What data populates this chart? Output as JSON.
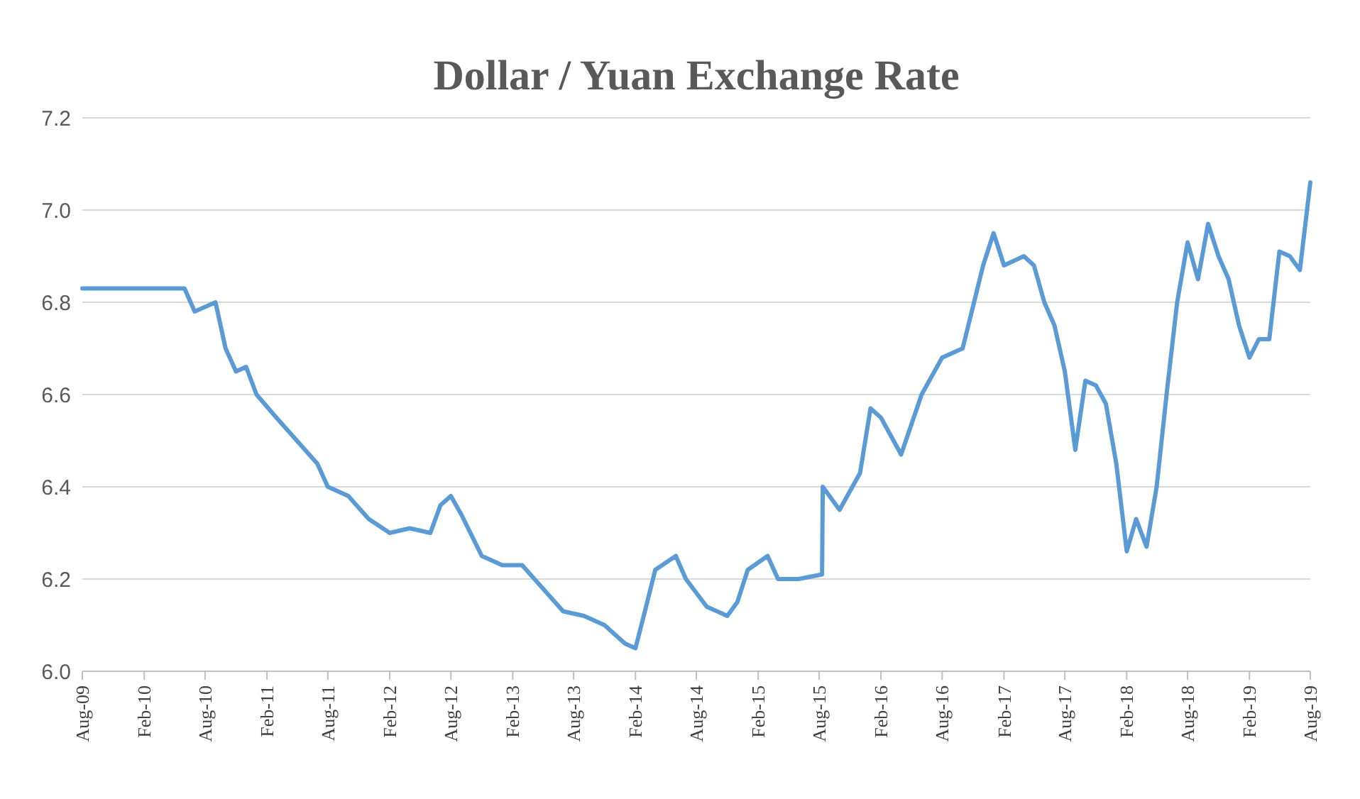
{
  "chart_data": {
    "type": "line",
    "title": "Dollar / Yuan Exchange Rate",
    "x": [
      "2009-08",
      "2010-01",
      "2010-06",
      "2010-07",
      "2010-09",
      "2010-10",
      "2010-11",
      "2010-12",
      "2011-01",
      "2011-03",
      "2011-05",
      "2011-07",
      "2011-08",
      "2011-10",
      "2011-12",
      "2012-02",
      "2012-04",
      "2012-06",
      "2012-07",
      "2012-08",
      "2012-09",
      "2012-11",
      "2013-01",
      "2013-03",
      "2013-05",
      "2013-07",
      "2013-09",
      "2013-11",
      "2014-01",
      "2014-02",
      "2014-03",
      "2014-04",
      "2014-06",
      "2014-07",
      "2014-09",
      "2014-11",
      "2014-12",
      "2015-01",
      "2015-03",
      "2015-04",
      "2015-06",
      "2015-08-10",
      "2015-08-12",
      "2015-10",
      "2015-12",
      "2016-01",
      "2016-02",
      "2016-04",
      "2016-06",
      "2016-08",
      "2016-10",
      "2016-12",
      "2017-01",
      "2017-02",
      "2017-04",
      "2017-05",
      "2017-06",
      "2017-07",
      "2017-08",
      "2017-09",
      "2017-10",
      "2017-11",
      "2017-12",
      "2018-01",
      "2018-02",
      "2018-03",
      "2018-04",
      "2018-05",
      "2018-06",
      "2018-07",
      "2018-08",
      "2018-09",
      "2018-10",
      "2018-11",
      "2018-12",
      "2019-01",
      "2019-02",
      "2019-03",
      "2019-04",
      "2019-05",
      "2019-06",
      "2019-07",
      "2019-08"
    ],
    "series": [
      {
        "color": "#5b9bd5",
        "values": [
          6.83,
          6.83,
          6.83,
          6.78,
          6.8,
          6.7,
          6.65,
          6.66,
          6.6,
          6.55,
          6.5,
          6.45,
          6.4,
          6.38,
          6.33,
          6.3,
          6.31,
          6.3,
          6.36,
          6.38,
          6.34,
          6.25,
          6.23,
          6.23,
          6.18,
          6.13,
          6.12,
          6.1,
          6.06,
          6.05,
          6.13,
          6.22,
          6.25,
          6.2,
          6.14,
          6.12,
          6.15,
          6.22,
          6.25,
          6.2,
          6.2,
          6.21,
          6.4,
          6.35,
          6.43,
          6.57,
          6.55,
          6.47,
          6.6,
          6.68,
          6.7,
          6.88,
          6.95,
          6.88,
          6.9,
          6.88,
          6.8,
          6.75,
          6.65,
          6.48,
          6.63,
          6.62,
          6.58,
          6.45,
          6.26,
          6.33,
          6.27,
          6.4,
          6.61,
          6.8,
          6.93,
          6.85,
          6.97,
          6.9,
          6.85,
          6.75,
          6.68,
          6.72,
          6.72,
          6.91,
          6.9,
          6.87,
          7.06
        ]
      }
    ],
    "xlim": [
      "2009-08",
      "2019-08"
    ],
    "xticks": [
      {
        "value": "2009-08",
        "label": "Aug-09"
      },
      {
        "value": "2010-02",
        "label": "Feb-10"
      },
      {
        "value": "2010-08",
        "label": "Aug-10"
      },
      {
        "value": "2011-02",
        "label": "Feb-11"
      },
      {
        "value": "2011-08",
        "label": "Aug-11"
      },
      {
        "value": "2012-02",
        "label": "Feb-12"
      },
      {
        "value": "2012-08",
        "label": "Aug-12"
      },
      {
        "value": "2013-02",
        "label": "Feb-13"
      },
      {
        "value": "2013-08",
        "label": "Aug-13"
      },
      {
        "value": "2014-02",
        "label": "Feb-14"
      },
      {
        "value": "2014-08",
        "label": "Aug-14"
      },
      {
        "value": "2015-02",
        "label": "Feb-15"
      },
      {
        "value": "2015-08",
        "label": "Aug-15"
      },
      {
        "value": "2016-02",
        "label": "Feb-16"
      },
      {
        "value": "2016-08",
        "label": "Aug-16"
      },
      {
        "value": "2017-02",
        "label": "Feb-17"
      },
      {
        "value": "2017-08",
        "label": "Aug-17"
      },
      {
        "value": "2018-02",
        "label": "Feb-18"
      },
      {
        "value": "2018-08",
        "label": "Aug-18"
      },
      {
        "value": "2019-02",
        "label": "Feb-19"
      },
      {
        "value": "2019-08",
        "label": "Aug-19"
      }
    ],
    "ylim": [
      6.0,
      7.2
    ],
    "yticks": [
      {
        "value": 6.0,
        "label": "6.0"
      },
      {
        "value": 6.2,
        "label": "6.2"
      },
      {
        "value": 6.4,
        "label": "6.4"
      },
      {
        "value": 6.6,
        "label": "6.6"
      },
      {
        "value": 6.8,
        "label": "6.8"
      },
      {
        "value": 7.0,
        "label": "7.0"
      },
      {
        "value": 7.2,
        "label": "7.2"
      }
    ],
    "grid": "y",
    "marker": "none",
    "line_style": "solid"
  }
}
